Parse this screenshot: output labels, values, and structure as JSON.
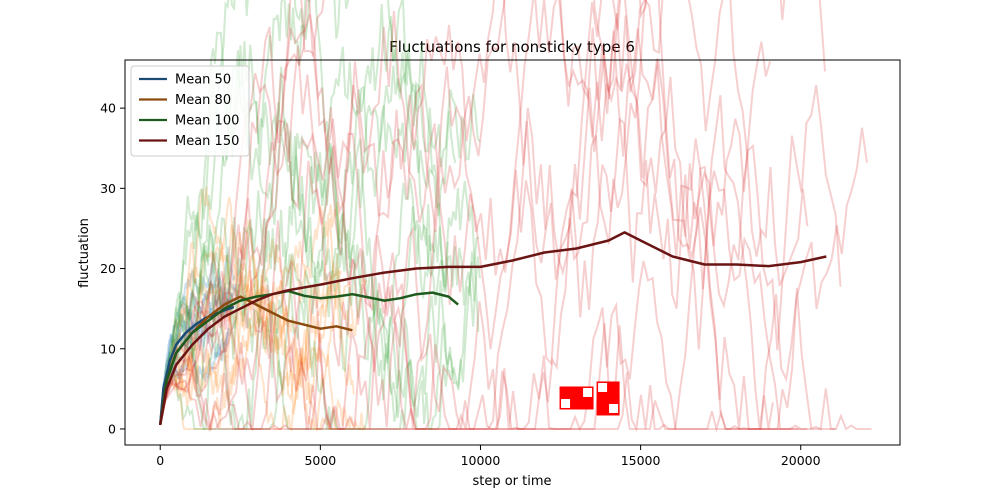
{
  "chart_data": {
    "type": "line",
    "title": "Fluctuations for nonsticky type 6",
    "xlabel": "step or time",
    "ylabel": "fluctuation",
    "xlim": [
      -1100,
      23100
    ],
    "ylim": [
      -2,
      46
    ],
    "x_ticks": [
      0,
      5000,
      10000,
      15000,
      20000
    ],
    "y_ticks": [
      0,
      10,
      20,
      30,
      40
    ],
    "grid": false,
    "legend_position": "top-left",
    "legend": [
      {
        "label": "Mean 50",
        "color": "#1b4a72"
      },
      {
        "label": "Mean 80",
        "color": "#8b4a0e"
      },
      {
        "label": "Mean 100",
        "color": "#1e5a1e"
      },
      {
        "label": "Mean 150",
        "color": "#6a1414"
      }
    ],
    "series": [
      {
        "name": "Mean 50",
        "color": "#1b4a72",
        "x": [
          0,
          100,
          300,
          500,
          800,
          1100,
          1400,
          1700,
          2000,
          2300
        ],
        "y": [
          0.5,
          5,
          8.5,
          10.5,
          12,
          13,
          13.8,
          14.3,
          14.8,
          15.2
        ]
      },
      {
        "name": "Mean 80",
        "color": "#8b4a0e",
        "x": [
          0,
          200,
          500,
          1000,
          1500,
          2000,
          2500,
          3000,
          3500,
          4000,
          4500,
          5000,
          5500,
          6000
        ],
        "y": [
          0.5,
          6,
          9.5,
          12,
          14,
          15.5,
          16.5,
          15.5,
          14.5,
          13.5,
          13,
          12.5,
          12.8,
          12.3
        ]
      },
      {
        "name": "Mean 100",
        "color": "#1e5a1e",
        "x": [
          0,
          200,
          500,
          1000,
          1500,
          2000,
          2500,
          3000,
          3500,
          4000,
          4500,
          5000,
          5500,
          6000,
          6500,
          7000,
          7500,
          8000,
          8500,
          9000,
          9300
        ],
        "y": [
          0.5,
          6,
          9.5,
          12,
          13.5,
          15,
          16,
          16.5,
          16.8,
          17.2,
          16.6,
          16.3,
          16.5,
          16.8,
          16.4,
          16,
          16.3,
          16.8,
          17,
          16.5,
          15.5
        ]
      },
      {
        "name": "Mean 150",
        "color": "#6a1414",
        "x": [
          0,
          200,
          500,
          1000,
          1500,
          2000,
          2500,
          3000,
          3500,
          4000,
          5000,
          6000,
          7000,
          8000,
          9000,
          10000,
          11000,
          12000,
          13000,
          14000,
          14500,
          15000,
          16000,
          17000,
          18000,
          19000,
          20000,
          20800
        ],
        "y": [
          0.5,
          5,
          8,
          10.5,
          12.5,
          14,
          15,
          16,
          16.8,
          17.3,
          18,
          18.8,
          19.5,
          20,
          20.2,
          20.2,
          21,
          22,
          22.5,
          23.5,
          24.5,
          23.5,
          21.5,
          20.5,
          20.5,
          20.3,
          20.8,
          21.5
        ]
      }
    ],
    "individual_runs_note": "",
    "markers": [
      {
        "x": 13000,
        "y": 3.8
      },
      {
        "x": 14000,
        "y": 3.8
      }
    ]
  }
}
